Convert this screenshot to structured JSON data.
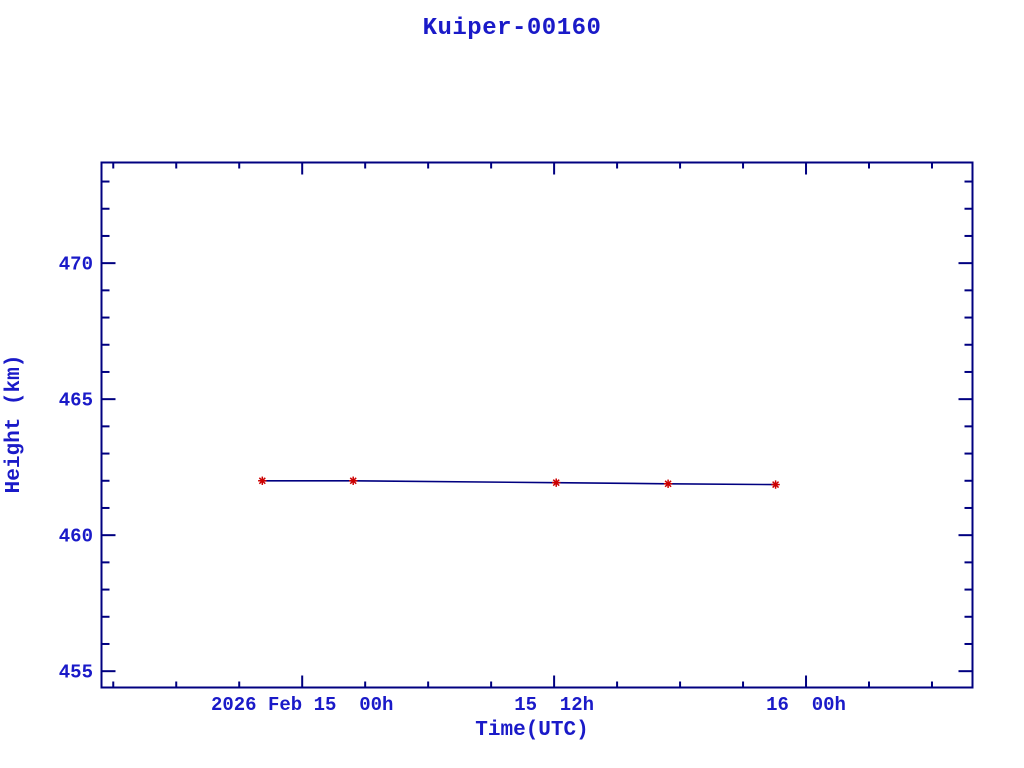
{
  "window": {
    "background": "#ffffff"
  },
  "colors": {
    "axis": "#000080",
    "text": "#1a1ac8",
    "line": "#000080",
    "marker": "#cd0000",
    "background": "#ffffff"
  },
  "chart_data": {
    "type": "line",
    "title": "Kuiper-00160",
    "xlabel": "Time(UTC)",
    "ylabel": "Height (km)",
    "x_reference": "2026 Feb 15 00h UTC",
    "x_unit_hours_from_reference": true,
    "xlim": [
      -9.56,
      31.93
    ],
    "ylim": [
      454.4,
      473.7
    ],
    "x_major_ticks": [
      {
        "value": 0,
        "label": "2026 Feb 15  00h"
      },
      {
        "value": 12,
        "label": "15  12h"
      },
      {
        "value": 24,
        "label": "16  00h"
      }
    ],
    "x_minor_step": 3,
    "y_major_ticks": [
      {
        "value": 455,
        "label": "455"
      },
      {
        "value": 460,
        "label": "460"
      },
      {
        "value": 465,
        "label": "465"
      },
      {
        "value": 470,
        "label": "470"
      }
    ],
    "y_minor_step": 1,
    "grid": false,
    "legend": null,
    "series": [
      {
        "name": "height",
        "marker": "asterisk",
        "x": [
          -1.9,
          2.43,
          12.1,
          17.43,
          22.55
        ],
        "y": [
          462.0,
          462.0,
          461.93,
          461.89,
          461.86
        ]
      }
    ]
  }
}
